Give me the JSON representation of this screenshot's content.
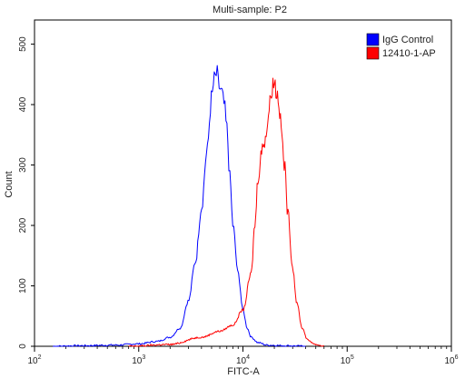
{
  "chart_data": {
    "type": "line",
    "title": "Multi-sample: P2",
    "xlabel": "FITC-A",
    "ylabel": "Count",
    "x_scale": "log",
    "xlim": [
      100,
      1000000
    ],
    "ylim": [
      0,
      540
    ],
    "x_ticks": [
      {
        "value": 100,
        "base": "10",
        "exp": "2"
      },
      {
        "value": 1000,
        "base": "10",
        "exp": "3"
      },
      {
        "value": 10000,
        "base": "10",
        "exp": "4"
      },
      {
        "value": 100000,
        "base": "10",
        "exp": "5"
      },
      {
        "value": 1000000,
        "base": "10",
        "exp": "6"
      }
    ],
    "y_ticks": [
      0,
      100,
      200,
      300,
      400,
      500
    ],
    "legend_position": "top-right",
    "series": [
      {
        "name": "IgG Control",
        "color": "#0000ff",
        "x": [
          150,
          300,
          600,
          1000,
          1500,
          2000,
          2500,
          3000,
          3500,
          4000,
          4500,
          5000,
          5300,
          5600,
          5900,
          6200,
          6600,
          7000,
          7500,
          8000,
          9000,
          10000,
          11000,
          12000,
          14000,
          17000,
          25000,
          40000
        ],
        "y": [
          0,
          1,
          2,
          4,
          8,
          15,
          30,
          75,
          140,
          230,
          320,
          410,
          440,
          450,
          430,
          420,
          400,
          360,
          280,
          200,
          120,
          60,
          30,
          15,
          6,
          2,
          1,
          0
        ]
      },
      {
        "name": "12410-1-AP",
        "color": "#ff0000",
        "x": [
          800,
          2000,
          4000,
          6000,
          8000,
          10000,
          12000,
          13000,
          14000,
          15000,
          16000,
          17000,
          18000,
          19000,
          20000,
          21000,
          22000,
          23000,
          25000,
          27000,
          30000,
          33000,
          37000,
          42000,
          50000,
          60000
        ],
        "y": [
          0,
          3,
          15,
          25,
          35,
          60,
          120,
          200,
          280,
          320,
          340,
          360,
          400,
          430,
          440,
          420,
          410,
          370,
          300,
          220,
          130,
          70,
          30,
          10,
          3,
          0
        ]
      }
    ]
  }
}
